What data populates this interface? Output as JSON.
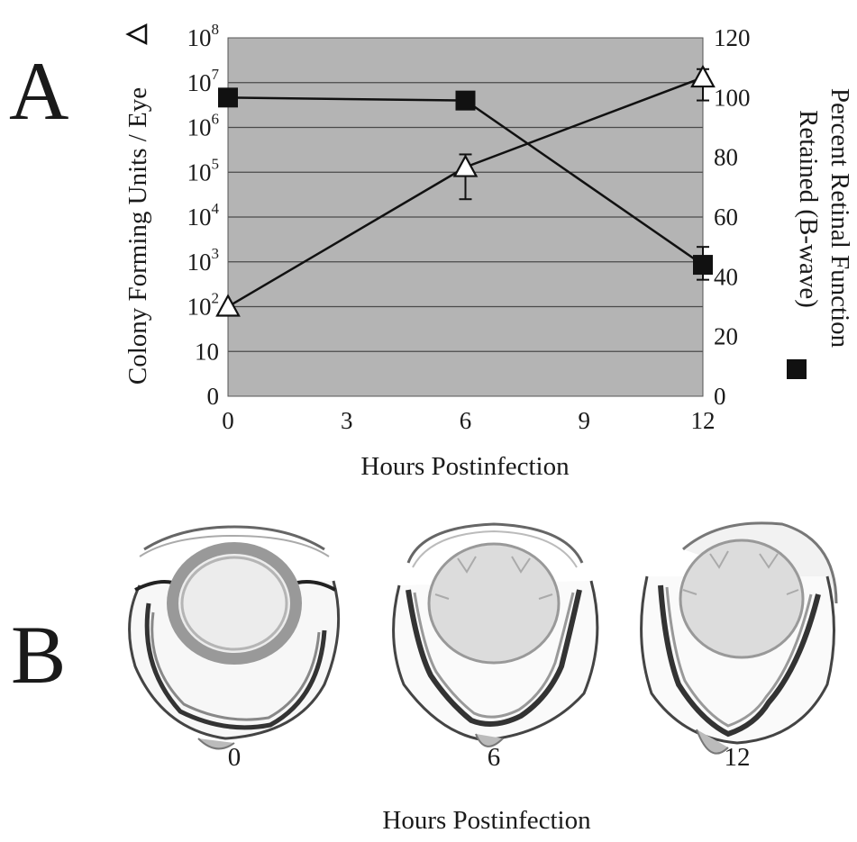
{
  "figure": {
    "panel_a_label": "A",
    "panel_b_label": "B"
  },
  "chart_data": {
    "type": "line",
    "xlabel": "Hours Postinfection",
    "x_ticks": [
      "0",
      "3",
      "6",
      "9",
      "12"
    ],
    "xlim": [
      0,
      12
    ],
    "grid": true,
    "left_axis": {
      "label": "Colony Forming Units / Eye",
      "scale": "log",
      "tick_values": [
        0,
        10,
        100,
        1000,
        10000,
        100000,
        1000000,
        10000000,
        100000000
      ],
      "tick_bases": [
        "0",
        "10",
        "10",
        "10",
        "10",
        "10",
        "10",
        "10",
        "10"
      ],
      "tick_exps": [
        "",
        "",
        "2",
        "3",
        "4",
        "5",
        "6",
        "7",
        "8"
      ]
    },
    "right_axis": {
      "label_line1": "Percent Retinal Function",
      "label_line2": "Retained (B-wave)",
      "ylim": [
        0,
        120
      ],
      "tick_labels": [
        "0",
        "20",
        "40",
        "60",
        "80",
        "100",
        "120"
      ]
    },
    "series": [
      {
        "marker": "open-triangle",
        "axis": "left",
        "x": [
          0,
          6,
          12
        ],
        "y": [
          100,
          130000,
          13000000
        ],
        "err_low": [
          100,
          25000,
          4000000
        ],
        "err_high": [
          100,
          250000,
          20000000
        ],
        "color": "#ffffff"
      },
      {
        "marker": "filled-square",
        "axis": "right",
        "x": [
          0,
          6,
          12
        ],
        "y": [
          100,
          99,
          44
        ],
        "err_low": [
          100,
          99,
          39
        ],
        "err_high": [
          100,
          99,
          50
        ],
        "color": "#111111"
      }
    ],
    "plot_bg": "#b4b4b4"
  },
  "panel_b": {
    "xlabel": "Hours Postinfection",
    "eyes": [
      {
        "label": "0"
      },
      {
        "label": "6"
      },
      {
        "label": "12"
      }
    ]
  }
}
